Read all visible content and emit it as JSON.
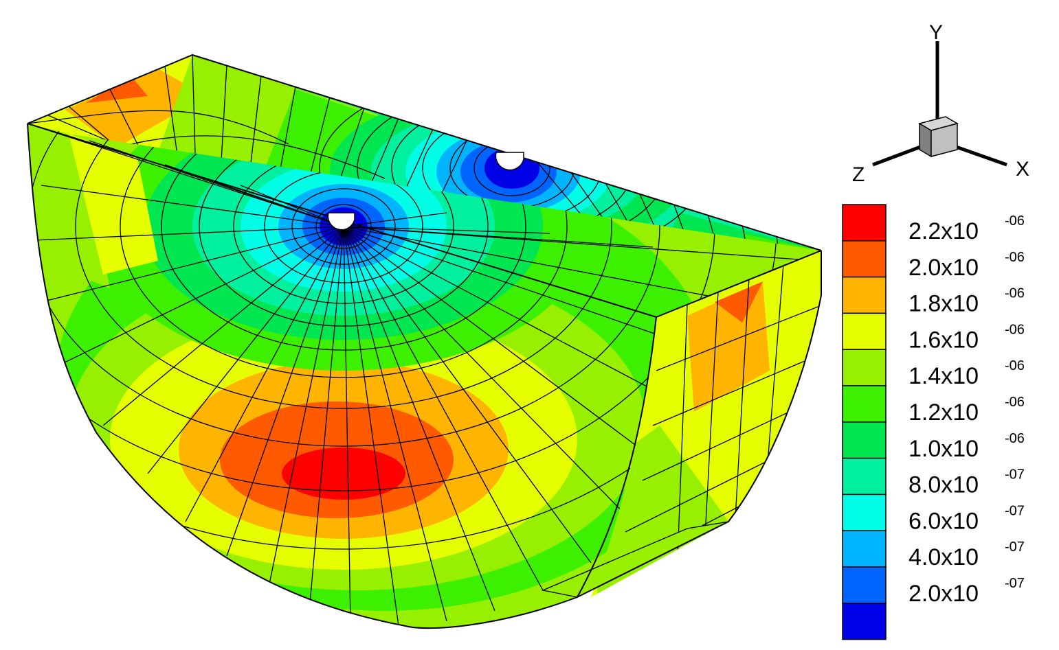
{
  "axis_triad": {
    "x_label": "X",
    "y_label": "Y",
    "z_label": "Z"
  },
  "legend": {
    "entries": [
      {
        "mantissa": "2.2x10",
        "exponent": "-06",
        "color": "#ff0000"
      },
      {
        "mantissa": "2.0x10",
        "exponent": "-06",
        "color": "#ff5a00"
      },
      {
        "mantissa": "1.8x10",
        "exponent": "-06",
        "color": "#ffb400"
      },
      {
        "mantissa": "1.6x10",
        "exponent": "-06",
        "color": "#e6ff00"
      },
      {
        "mantissa": "1.4x10",
        "exponent": "-06",
        "color": "#96f000"
      },
      {
        "mantissa": "1.2x10",
        "exponent": "-06",
        "color": "#3cf000"
      },
      {
        "mantissa": "1.0x10",
        "exponent": "-06",
        "color": "#00e650"
      },
      {
        "mantissa": "8.0x10",
        "exponent": "-07",
        "color": "#00f0a0"
      },
      {
        "mantissa": "6.0x10",
        "exponent": "-07",
        "color": "#00ffe6"
      },
      {
        "mantissa": "4.0x10",
        "exponent": "-07",
        "color": "#00b4ff"
      },
      {
        "mantissa": "2.0x10",
        "exponent": "-07",
        "color": "#0064ff"
      },
      {
        "mantissa": "",
        "exponent": "",
        "color": "#0000e6"
      }
    ]
  },
  "mesh": {
    "hole_centers_colors": {
      "deep": "#0000e6",
      "blue": "#0064ff"
    }
  }
}
